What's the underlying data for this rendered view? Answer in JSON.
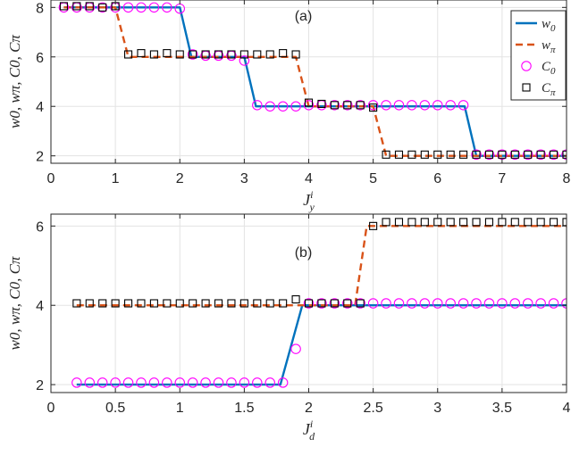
{
  "colors": {
    "w0": "#0072BD",
    "wpi": "#D95319",
    "C0": "#FF00FF",
    "Cpi": "#000000",
    "grid": "#e3e3e3",
    "axis": "#262626"
  },
  "chart_data": [
    {
      "type": "line",
      "annotation": "(a)",
      "xlabel_main": "J",
      "xlabel_sup": "i",
      "xlabel_sub": "y",
      "ylabel": "w0, wπ, C0, Cπ",
      "xlim": [
        0,
        8
      ],
      "ylim": [
        1.7,
        8.3
      ],
      "xticks": [
        0,
        1,
        2,
        3,
        4,
        5,
        6,
        7,
        8
      ],
      "yticks": [
        2,
        4,
        6,
        8
      ],
      "xtick_labels": [
        "0",
        "1",
        "2",
        "3",
        "4",
        "5",
        "6",
        "7",
        "8"
      ],
      "ytick_labels": [
        "2",
        "4",
        "6",
        "8"
      ],
      "grid": true,
      "legend_position": "top-right",
      "legend": [
        {
          "key": "w0",
          "base": "w",
          "sub": "0",
          "marker": "line"
        },
        {
          "key": "wpi",
          "base": "w",
          "sub": "π",
          "marker": "dash"
        },
        {
          "key": "C0",
          "base": "C",
          "sub": "0",
          "marker": "circle"
        },
        {
          "key": "Cpi",
          "base": "C",
          "sub": "π",
          "marker": "square"
        }
      ],
      "series": [
        {
          "key": "w0",
          "style": "solid",
          "x": [
            0.2,
            2.0,
            2.18,
            3.0,
            3.18,
            6.42,
            6.6,
            8.0
          ],
          "y": [
            8,
            8,
            6,
            6,
            4,
            4,
            2,
            2
          ]
        },
        {
          "key": "wpi",
          "style": "dash",
          "x": [
            0.2,
            1.0,
            1.2,
            3.8,
            4.0,
            5.0,
            5.2,
            8.0
          ],
          "y": [
            8,
            8,
            6,
            6,
            4,
            4,
            2,
            2
          ]
        },
        {
          "key": "C0",
          "style": "circle",
          "x": [
            0.2,
            0.4,
            0.6,
            0.8,
            1.0,
            1.2,
            1.4,
            1.6,
            1.8,
            2.0,
            2.2,
            2.4,
            2.6,
            2.8,
            3.0,
            3.2,
            3.4,
            3.6,
            3.8,
            4.0,
            4.2,
            4.4,
            4.6,
            4.8,
            5.0,
            5.2,
            5.4,
            5.6,
            5.8,
            6.0,
            6.2,
            6.4,
            6.6,
            6.8,
            7.0,
            7.2,
            7.4,
            7.6,
            7.8,
            8.0
          ],
          "y": [
            8,
            8,
            8,
            8,
            8,
            8,
            8,
            8,
            8,
            7.95,
            6.1,
            6.05,
            6.05,
            6.05,
            5.85,
            4.05,
            4.0,
            4.0,
            4.0,
            4.05,
            4.05,
            4.05,
            4.05,
            4.05,
            4.05,
            4.05,
            4.05,
            4.05,
            4.05,
            4.05,
            4.05,
            4.05,
            2.05,
            2.05,
            2.05,
            2.05,
            2.05,
            2.05,
            2.05,
            2.05
          ]
        },
        {
          "key": "Cpi",
          "style": "square",
          "x": [
            0.2,
            0.4,
            0.6,
            0.8,
            1.0,
            1.2,
            1.4,
            1.6,
            1.8,
            2.0,
            2.2,
            2.4,
            2.6,
            2.8,
            3.0,
            3.2,
            3.4,
            3.6,
            3.8,
            4.0,
            4.2,
            4.4,
            4.6,
            4.8,
            5.0,
            5.2,
            5.4,
            5.6,
            5.8,
            6.0,
            6.2,
            6.4,
            6.6,
            6.8,
            7.0,
            7.2,
            7.4,
            7.6,
            7.8,
            8.0
          ],
          "y": [
            8.05,
            8.05,
            8.05,
            8.0,
            8.05,
            6.1,
            6.15,
            6.1,
            6.15,
            6.1,
            6.1,
            6.1,
            6.1,
            6.1,
            6.1,
            6.1,
            6.1,
            6.15,
            6.1,
            4.15,
            4.1,
            4.05,
            4.05,
            4.05,
            3.95,
            2.05,
            2.05,
            2.05,
            2.05,
            2.05,
            2.05,
            2.05,
            2.05,
            2.05,
            2.05,
            2.05,
            2.05,
            2.05,
            2.05,
            2.05
          ]
        }
      ]
    },
    {
      "type": "line",
      "annotation": "(b)",
      "xlabel_main": "J",
      "xlabel_sup": "i",
      "xlabel_sub": "d",
      "ylabel": "w0, wπ, C0, Cπ",
      "xlim": [
        0,
        4
      ],
      "ylim": [
        1.8,
        6.3
      ],
      "xticks": [
        0,
        0.5,
        1,
        1.5,
        2,
        2.5,
        3,
        3.5,
        4
      ],
      "yticks": [
        2,
        4,
        6
      ],
      "xtick_labels": [
        "0",
        "0.5",
        "1",
        "1.5",
        "2",
        "2.5",
        "3",
        "3.5",
        "4"
      ],
      "ytick_labels": [
        "2",
        "4",
        "6"
      ],
      "grid": true,
      "series": [
        {
          "key": "w0",
          "style": "solid",
          "x": [
            0.2,
            1.78,
            1.95,
            4.0
          ],
          "y": [
            2,
            2,
            4,
            4
          ]
        },
        {
          "key": "wpi",
          "style": "dash",
          "x": [
            0.2,
            2.36,
            2.45,
            4.0
          ],
          "y": [
            4,
            4,
            6,
            6
          ]
        },
        {
          "key": "C0",
          "style": "circle",
          "x": [
            0.2,
            0.3,
            0.4,
            0.5,
            0.6,
            0.7,
            0.8,
            0.9,
            1.0,
            1.1,
            1.2,
            1.3,
            1.4,
            1.5,
            1.6,
            1.7,
            1.8,
            1.9,
            2.0,
            2.1,
            2.2,
            2.3,
            2.4,
            2.5,
            2.6,
            2.7,
            2.8,
            2.9,
            3.0,
            3.1,
            3.2,
            3.3,
            3.4,
            3.5,
            3.6,
            3.7,
            3.8,
            3.9,
            4.0
          ],
          "y": [
            2.05,
            2.05,
            2.05,
            2.05,
            2.05,
            2.05,
            2.05,
            2.05,
            2.05,
            2.05,
            2.05,
            2.05,
            2.05,
            2.05,
            2.05,
            2.05,
            2.05,
            2.9,
            4.05,
            4.05,
            4.05,
            4.05,
            4.05,
            4.05,
            4.05,
            4.05,
            4.05,
            4.05,
            4.05,
            4.05,
            4.05,
            4.05,
            4.05,
            4.05,
            4.05,
            4.05,
            4.05,
            4.05,
            4.05
          ]
        },
        {
          "key": "Cpi",
          "style": "square",
          "x": [
            0.2,
            0.3,
            0.4,
            0.5,
            0.6,
            0.7,
            0.8,
            0.9,
            1.0,
            1.1,
            1.2,
            1.3,
            1.4,
            1.5,
            1.6,
            1.7,
            1.8,
            1.9,
            2.0,
            2.1,
            2.2,
            2.3,
            2.4,
            2.5,
            2.6,
            2.7,
            2.8,
            2.9,
            3.0,
            3.1,
            3.2,
            3.3,
            3.4,
            3.5,
            3.6,
            3.7,
            3.8,
            3.9,
            4.0
          ],
          "y": [
            4.05,
            4.05,
            4.05,
            4.05,
            4.05,
            4.05,
            4.05,
            4.05,
            4.05,
            4.05,
            4.05,
            4.05,
            4.05,
            4.05,
            4.05,
            4.05,
            4.05,
            4.15,
            4.05,
            4.05,
            4.05,
            4.05,
            4.05,
            6.0,
            6.1,
            6.1,
            6.1,
            6.1,
            6.1,
            6.1,
            6.1,
            6.1,
            6.1,
            6.1,
            6.1,
            6.1,
            6.1,
            6.1,
            6.1
          ]
        }
      ]
    }
  ]
}
